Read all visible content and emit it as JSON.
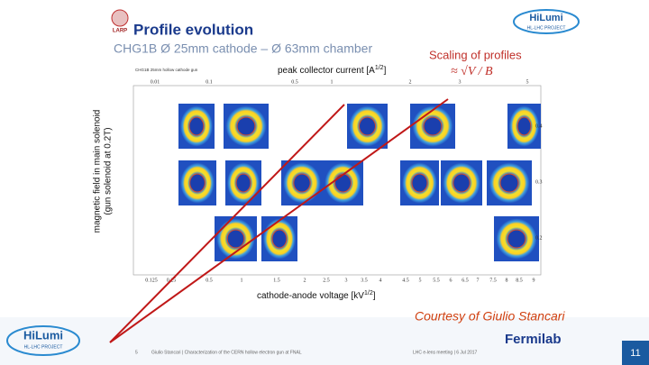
{
  "header": {
    "logo": "LARP",
    "title": "Profile evolution",
    "subtitle": "CHG1B Ø 25mm cathode – Ø 63mm chamber",
    "brand": "HiLumi",
    "brand_sub": "HL-LHC PROJECT"
  },
  "scaling": {
    "title": "Scaling of profiles",
    "formula": "≈ √V / B"
  },
  "plot": {
    "inner_title": "CHG1B 25mm hollow cathode gun",
    "top_label": {
      "text": "peak collector current [A",
      "sup": "1/2",
      "end": "]"
    },
    "y_label": [
      "magnetic field in main solenoid",
      "(gun solenoid at 0.2T)"
    ],
    "x_label": {
      "text": "cathode-anode voltage [kV",
      "sup": "1/2",
      "end": "]"
    },
    "top_ticks": [
      "0.01",
      "0.1",
      "0.5",
      "1",
      "2",
      "3",
      "5"
    ],
    "bottom_ticks": [
      "0.125",
      "0.25",
      "0.5",
      "1",
      "1.5",
      "2",
      "2.5",
      "3",
      "3.5",
      "4",
      "4.5",
      "5",
      "5.5",
      "6",
      "6.5",
      "7",
      "7.5",
      "8",
      "8.5",
      "9"
    ],
    "right_ticks": [
      "0.4",
      "0.3",
      "0.2"
    ]
  },
  "credit": "Courtesy of Giulio Stancari",
  "footer": {
    "slide": "5",
    "author": "Giulio Stancari | Characterization of the CERN hollow electron gun at FNAL",
    "meeting": "LHC e-lens meeting | 6 Jul 2017",
    "lab": "Fermilab",
    "brand": "HiLumi",
    "brand_sub": "HL-LHC PROJECT",
    "page": "11"
  }
}
